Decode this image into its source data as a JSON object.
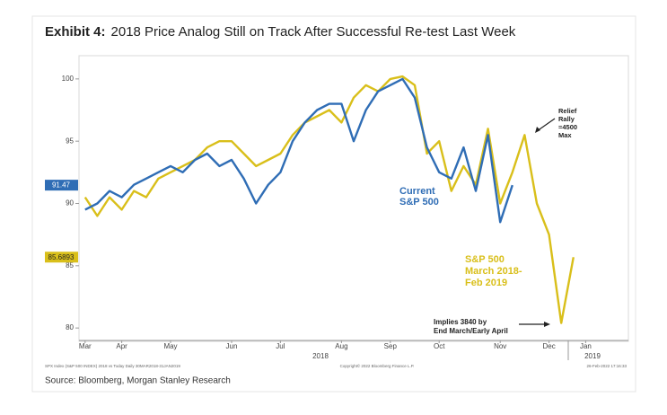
{
  "chart_data": {
    "type": "line",
    "title_prefix": "Exhibit 4:",
    "title": "2018 Price Analog Still on Track After Successful Re-test Last Week",
    "categories": [
      "Mar",
      null,
      null,
      "Apr",
      null,
      null,
      null,
      "May",
      null,
      null,
      null,
      null,
      "Jun",
      null,
      null,
      null,
      "Jul",
      null,
      null,
      null,
      null,
      "Aug",
      null,
      null,
      null,
      "Sep",
      null,
      null,
      null,
      "Oct",
      null,
      null,
      null,
      null,
      "Nov",
      null,
      null,
      null,
      "Dec",
      null,
      null,
      "Jan",
      null,
      null,
      null
    ],
    "year_labels": [
      "2018",
      "2019"
    ],
    "series": [
      {
        "name": "S&P 500 March 2018-Feb 2019",
        "color": "#d9bf1a",
        "last_value": 85.6893,
        "values": [
          90.5,
          89.0,
          90.5,
          89.5,
          91.0,
          90.5,
          92.0,
          92.5,
          93.0,
          93.5,
          94.5,
          95.0,
          95.0,
          94.0,
          93.0,
          93.5,
          94.0,
          95.5,
          96.5,
          97.0,
          97.5,
          96.5,
          98.5,
          99.5,
          99.0,
          100.0,
          100.2,
          99.5,
          94.0,
          95.0,
          91.0,
          93.0,
          91.5,
          96.0,
          90.0,
          92.5,
          95.5,
          90.0,
          87.5,
          80.4,
          85.69,
          null,
          null,
          null,
          null
        ]
      },
      {
        "name": "Current S&P 500",
        "color": "#2f6db5",
        "last_value": 91.47,
        "values": [
          89.5,
          90.0,
          91.0,
          90.5,
          91.5,
          92.0,
          92.5,
          93.0,
          92.5,
          93.5,
          94.0,
          93.0,
          93.5,
          92.0,
          90.0,
          91.5,
          92.5,
          95.0,
          96.5,
          97.5,
          98.0,
          98.0,
          95.0,
          97.5,
          99.0,
          99.5,
          100.0,
          98.5,
          94.5,
          92.5,
          92.0,
          94.5,
          91.0,
          95.5,
          88.5,
          91.47,
          null,
          null,
          null,
          null,
          null,
          null,
          null,
          null,
          null
        ]
      }
    ],
    "ylim": [
      79,
      101
    ],
    "yticks": [
      80,
      85,
      90,
      95,
      100
    ],
    "annotations": [
      {
        "lines": [
          "Current",
          "S&P 500"
        ],
        "color": "#2f6db5"
      },
      {
        "lines": [
          "S&P 500",
          "March 2018-",
          "Feb 2019"
        ],
        "color": "#d9bf1a"
      },
      {
        "lines": [
          "Relief",
          "Rally",
          "=4500",
          "Max"
        ],
        "color": "#222222"
      },
      {
        "lines": [
          "Implies 3840 by",
          "End March/Early April"
        ],
        "color": "#222222"
      }
    ],
    "footer_left": "SPX Index (S&P 500 INDEX) 2018 vs Today  Daily 30MAR2018-31JAN2019",
    "copyright": "Copyright© 2022 Bloomberg Finance L.P.",
    "timestamp": "26-Feb-2022 17:16:33",
    "source": "Source: Bloomberg, Morgan Stanley Research"
  }
}
